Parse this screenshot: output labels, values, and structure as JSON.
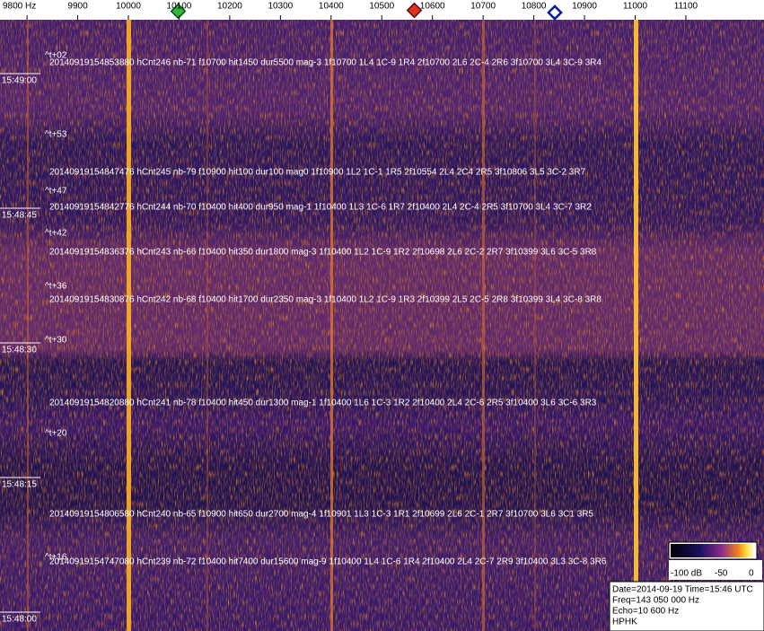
{
  "frequency_axis": {
    "ticks": [
      "9800 Hz",
      "9900",
      "10000",
      "10100",
      "10200",
      "10300",
      "10400",
      "10500",
      "10600",
      "10700",
      "10800",
      "10900",
      "11000",
      "11100"
    ]
  },
  "time_labels": [
    "15:49:00",
    "15:48:45",
    "15:48:30",
    "15:48:15",
    "15:48:00"
  ],
  "relative_labels": [
    "^t+02",
    "^t+53",
    "^t+47",
    "^t+42",
    "^t+36",
    "^t+30",
    "^t+20",
    "^t+16"
  ],
  "detections": [
    "20140919154853880 hCnt246 nb-71 f10700 hit1450 dur5500 mag-3 1f10700 1L4 1C-9 1R4 2f10700 2L6 2C-4 2R6 3f10700 3L4 3C-9 3R4",
    "20140919154847476 hCnt245 nb-79 f10900 hit100 dur100 mag0 1f10900 1L2 1C-1 1R5 2f10554 2L4 2C4 2R5 3f10806 3L5 3C-2 3R7",
    "20140919154842776 hCnt244 nb-70 f10400 hit400 dur950 mag-1 1f10400 1L3 1C-6 1R7 2f10400 2L4 2C-4 2R5 3f10700 3L4 3C-7 3R2",
    "20140919154836376 hCnt243 nb-66 f10400 hit350 dur1800 mag-3 1f10400 1L2 1C-9 1R2 2f10698 2L6 2C-2 2R7 3f10399 3L6 3C-5 3R8",
    "20140919154830876 hCnt242 nb-68 f10400 hit1700 dur2350 mag-3 1f10400 1L2 1C-9 1R3 2f10399 2L5 2C-5 2R8 3f10399 3L4 3C-8 3R8",
    "20140919154820880 hCnt241 nb-78 f10400 hit450 dur1300 mag-1 1f10400 1L6 1C-3 1R2 2f10400 2L4 2C-6 2R5 3f10400 3L6 3C-6 3R3",
    "20140919154806580 hCnt240 nb-65 f10900 hit650 dur2700 mag-4 1f10901 1L3 1C-3 1R1 2f10699 2L6 2C-1 2R7 3f10700 3L6 3C1 3R5",
    "20140919154747080 hCnt239 nb-72 f10400 hit7400 dur15600 mag-9 1f10400 1L4 1C-6 1R4 2f10400 2L4 2C-7 2R9 3f10400 3L3 3C-8 3R6"
  ],
  "colorbar": {
    "labels": [
      "-100 dB",
      "-50",
      "0"
    ]
  },
  "info": [
    "Date=2014-09-19 Time=15:46 UTC",
    "Freq=143 050 000 Hz",
    "Echo=10 600 Hz",
    "HPHK"
  ]
}
